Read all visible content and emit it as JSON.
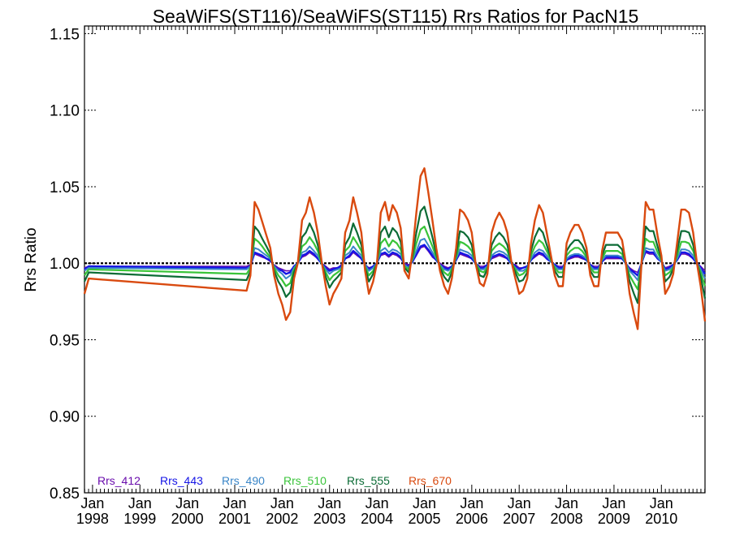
{
  "chart_data": {
    "type": "line",
    "title": "SeaWiFS(ST116)/SeaWiFS(ST115)  Rrs Ratios for PacN15",
    "xlabel": "",
    "ylabel": "Rrs Ratio",
    "ylim": [
      0.85,
      1.155
    ],
    "yticks": [
      {
        "value": 0.85,
        "label": "0.85"
      },
      {
        "value": 0.9,
        "label": "0.90"
      },
      {
        "value": 0.95,
        "label": "0.95"
      },
      {
        "value": 1.0,
        "label": "1.00"
      },
      {
        "value": 1.05,
        "label": "1.05"
      },
      {
        "value": 1.1,
        "label": "1.10"
      },
      {
        "value": 1.15,
        "label": "1.15"
      }
    ],
    "xlim": [
      1997.83,
      2010.92
    ],
    "xticks": [
      {
        "value": 1998,
        "month": "Jan",
        "year": "1998"
      },
      {
        "value": 1999,
        "month": "Jan",
        "year": "1999"
      },
      {
        "value": 2000,
        "month": "Jan",
        "year": "2000"
      },
      {
        "value": 2001,
        "month": "Jan",
        "year": "2001"
      },
      {
        "value": 2002,
        "month": "Jan",
        "year": "2002"
      },
      {
        "value": 2003,
        "month": "Jan",
        "year": "2003"
      },
      {
        "value": 2004,
        "month": "Jan",
        "year": "2004"
      },
      {
        "value": 2005,
        "month": "Jan",
        "year": "2005"
      },
      {
        "value": 2006,
        "month": "Jan",
        "year": "2006"
      },
      {
        "value": 2007,
        "month": "Jan",
        "year": "2007"
      },
      {
        "value": 2008,
        "month": "Jan",
        "year": "2008"
      },
      {
        "value": 2009,
        "month": "Jan",
        "year": "2009"
      },
      {
        "value": 2010,
        "month": "Jan",
        "year": "2010"
      }
    ],
    "reference_line": {
      "value": 1.0,
      "style": "dotted"
    },
    "grid": false,
    "legend_position": "bottom-left",
    "x": [
      1997.83,
      1997.92,
      2001.25,
      2001.33,
      2001.42,
      2001.5,
      2001.58,
      2001.67,
      2001.75,
      2001.83,
      2001.92,
      2002.0,
      2002.08,
      2002.17,
      2002.25,
      2002.33,
      2002.42,
      2002.5,
      2002.58,
      2002.67,
      2002.75,
      2002.83,
      2002.92,
      2003.0,
      2003.08,
      2003.17,
      2003.25,
      2003.33,
      2003.42,
      2003.5,
      2003.58,
      2003.67,
      2003.75,
      2003.83,
      2003.92,
      2004.0,
      2004.08,
      2004.17,
      2004.25,
      2004.33,
      2004.42,
      2004.5,
      2004.58,
      2004.67,
      2004.75,
      2004.83,
      2004.92,
      2005.0,
      2005.08,
      2005.17,
      2005.25,
      2005.33,
      2005.42,
      2005.5,
      2005.58,
      2005.67,
      2005.75,
      2005.83,
      2005.92,
      2006.0,
      2006.08,
      2006.17,
      2006.25,
      2006.33,
      2006.42,
      2006.5,
      2006.58,
      2006.67,
      2006.75,
      2006.83,
      2006.92,
      2007.0,
      2007.08,
      2007.17,
      2007.25,
      2007.33,
      2007.42,
      2007.5,
      2007.58,
      2007.67,
      2007.75,
      2007.83,
      2007.92,
      2008.0,
      2008.08,
      2008.17,
      2008.25,
      2008.33,
      2008.42,
      2008.5,
      2008.58,
      2008.67,
      2008.75,
      2008.83,
      2008.92,
      2009.0,
      2009.08,
      2009.17,
      2009.25,
      2009.33,
      2009.42,
      2009.5,
      2009.58,
      2009.67,
      2009.75,
      2009.83,
      2009.92,
      2010.0,
      2010.08,
      2010.17,
      2010.25,
      2010.33,
      2010.42,
      2010.5,
      2010.58,
      2010.67,
      2010.75,
      2010.83,
      2010.92
    ],
    "series": [
      {
        "name": "Rrs_412",
        "color": "#6a0dad",
        "width": 1.6,
        "values": [
          0.997,
          0.998,
          0.998,
          0.999,
          1.006,
          1.005,
          1.004,
          1.003,
          1.001,
          0.999,
          0.997,
          0.996,
          0.995,
          0.995,
          0.998,
          1.0,
          1.004,
          1.005,
          1.007,
          1.005,
          1.003,
          1.0,
          0.998,
          0.996,
          0.997,
          0.997,
          0.999,
          1.003,
          1.004,
          1.007,
          1.005,
          1.003,
          0.999,
          0.997,
          0.998,
          1.0,
          1.005,
          1.006,
          1.004,
          1.006,
          1.005,
          1.003,
          1.0,
          0.999,
          1.001,
          1.005,
          1.01,
          1.011,
          1.008,
          1.004,
          1.002,
          1.0,
          0.998,
          0.997,
          0.998,
          1.002,
          1.006,
          1.005,
          1.004,
          1.003,
          1.0,
          0.998,
          0.998,
          0.999,
          1.003,
          1.004,
          1.005,
          1.004,
          1.003,
          1.0,
          0.999,
          0.997,
          0.997,
          0.998,
          1.002,
          1.004,
          1.006,
          1.005,
          1.003,
          1.001,
          0.999,
          0.998,
          0.998,
          1.002,
          1.003,
          1.004,
          1.004,
          1.003,
          1.002,
          0.999,
          0.998,
          0.998,
          1.001,
          1.003,
          1.003,
          1.003,
          1.003,
          1.003,
          1.0,
          0.997,
          0.995,
          0.994,
          1.0,
          1.007,
          1.006,
          1.006,
          1.003,
          1.001,
          0.997,
          0.998,
          0.999,
          1.002,
          1.006,
          1.006,
          1.005,
          1.003,
          1.0,
          0.998,
          0.995
        ]
      },
      {
        "name": "Rrs_443",
        "color": "#1414e6",
        "width": 2.4,
        "values": [
          0.996,
          0.998,
          0.997,
          0.998,
          1.007,
          1.006,
          1.005,
          1.003,
          1.002,
          0.998,
          0.996,
          0.995,
          0.993,
          0.994,
          0.998,
          1.0,
          1.005,
          1.006,
          1.008,
          1.006,
          1.003,
          1.0,
          0.997,
          0.995,
          0.996,
          0.997,
          0.998,
          1.003,
          1.005,
          1.008,
          1.006,
          1.003,
          0.999,
          0.996,
          0.998,
          1.0,
          1.006,
          1.007,
          1.005,
          1.007,
          1.006,
          1.004,
          0.999,
          0.998,
          1.001,
          1.006,
          1.011,
          1.012,
          1.009,
          1.005,
          1.002,
          0.999,
          0.997,
          0.996,
          0.998,
          1.002,
          1.007,
          1.006,
          1.005,
          1.003,
          1.0,
          0.997,
          0.997,
          0.999,
          1.004,
          1.005,
          1.006,
          1.005,
          1.003,
          1.0,
          0.998,
          0.996,
          0.997,
          0.998,
          1.002,
          1.005,
          1.007,
          1.006,
          1.003,
          1.001,
          0.999,
          0.997,
          0.997,
          1.002,
          1.004,
          1.005,
          1.005,
          1.004,
          1.002,
          0.999,
          0.997,
          0.997,
          1.001,
          1.004,
          1.004,
          1.004,
          1.004,
          1.003,
          1.0,
          0.996,
          0.994,
          0.992,
          1.0,
          1.008,
          1.007,
          1.007,
          1.003,
          1.001,
          0.996,
          0.997,
          0.999,
          1.002,
          1.007,
          1.007,
          1.006,
          1.003,
          1.0,
          0.997,
          0.993
        ]
      },
      {
        "name": "Rrs_490",
        "color": "#3a86c8",
        "width": 2.0,
        "values": [
          0.995,
          0.997,
          0.996,
          0.998,
          1.01,
          1.009,
          1.007,
          1.005,
          1.003,
          0.998,
          0.995,
          0.993,
          0.99,
          0.992,
          0.997,
          1.0,
          1.007,
          1.008,
          1.011,
          1.008,
          1.005,
          1.0,
          0.996,
          0.993,
          0.995,
          0.996,
          0.997,
          1.005,
          1.007,
          1.011,
          1.008,
          1.005,
          0.999,
          0.995,
          0.997,
          1.0,
          1.008,
          1.01,
          1.007,
          1.009,
          1.008,
          1.006,
          0.999,
          0.997,
          1.002,
          1.008,
          1.015,
          1.016,
          1.012,
          1.007,
          1.003,
          0.999,
          0.996,
          0.995,
          0.997,
          1.003,
          1.009,
          1.008,
          1.007,
          1.005,
          1.0,
          0.996,
          0.996,
          0.998,
          1.005,
          1.007,
          1.008,
          1.007,
          1.005,
          1.0,
          0.997,
          0.995,
          0.995,
          0.997,
          1.003,
          1.007,
          1.009,
          1.008,
          1.005,
          1.001,
          0.998,
          0.996,
          0.996,
          1.003,
          1.005,
          1.006,
          1.006,
          1.005,
          1.003,
          0.998,
          0.996,
          0.996,
          1.002,
          1.005,
          1.005,
          1.005,
          1.005,
          1.004,
          1.0,
          0.995,
          0.992,
          0.989,
          1.0,
          1.01,
          1.009,
          1.009,
          1.004,
          1.001,
          0.995,
          0.996,
          0.998,
          1.003,
          1.009,
          1.009,
          1.008,
          1.005,
          1.0,
          0.996,
          0.99
        ]
      },
      {
        "name": "Rrs_510",
        "color": "#39c439",
        "width": 2.2,
        "values": [
          0.992,
          0.996,
          0.993,
          0.997,
          1.016,
          1.014,
          1.011,
          1.007,
          1.004,
          0.997,
          0.992,
          0.989,
          0.985,
          0.987,
          0.996,
          1.0,
          1.011,
          1.013,
          1.017,
          1.013,
          1.008,
          1.0,
          0.994,
          0.989,
          0.992,
          0.994,
          0.996,
          1.008,
          1.011,
          1.017,
          1.013,
          1.008,
          0.998,
          0.992,
          0.995,
          1.0,
          1.013,
          1.016,
          1.011,
          1.015,
          1.013,
          1.009,
          0.998,
          0.996,
          1.003,
          1.013,
          1.022,
          1.024,
          1.018,
          1.011,
          1.004,
          0.998,
          0.994,
          0.992,
          0.996,
          1.004,
          1.014,
          1.013,
          1.011,
          1.008,
          1.0,
          0.995,
          0.994,
          0.997,
          1.008,
          1.011,
          1.013,
          1.011,
          1.008,
          1.001,
          0.996,
          0.992,
          0.993,
          0.996,
          1.005,
          1.011,
          1.015,
          1.013,
          1.008,
          1.002,
          0.997,
          0.994,
          0.994,
          1.005,
          1.008,
          1.01,
          1.01,
          1.008,
          1.004,
          0.997,
          0.994,
          0.994,
          1.003,
          1.008,
          1.008,
          1.008,
          1.008,
          1.006,
          1.0,
          0.992,
          0.987,
          0.983,
          1.0,
          1.016,
          1.014,
          1.014,
          1.007,
          1.002,
          0.992,
          0.994,
          0.997,
          1.005,
          1.014,
          1.014,
          1.013,
          1.008,
          1.0,
          0.994,
          0.985
        ]
      },
      {
        "name": "Rrs_555",
        "color": "#0b6b35",
        "width": 2.2,
        "values": [
          0.988,
          0.994,
          0.989,
          0.995,
          1.024,
          1.021,
          1.016,
          1.011,
          1.006,
          0.995,
          0.988,
          0.984,
          0.978,
          0.981,
          0.994,
          1.0,
          1.017,
          1.02,
          1.026,
          1.02,
          1.012,
          1.001,
          0.991,
          0.984,
          0.988,
          0.991,
          0.994,
          1.012,
          1.017,
          1.026,
          1.02,
          1.012,
          0.997,
          0.988,
          0.993,
          1.0,
          1.02,
          1.024,
          1.017,
          1.023,
          1.02,
          1.014,
          0.997,
          0.994,
          1.005,
          1.02,
          1.034,
          1.037,
          1.028,
          1.017,
          1.006,
          0.997,
          0.991,
          0.988,
          0.994,
          1.006,
          1.021,
          1.02,
          1.017,
          1.012,
          1.0,
          0.992,
          0.991,
          0.996,
          1.012,
          1.017,
          1.02,
          1.017,
          1.012,
          1.001,
          0.994,
          0.988,
          0.989,
          0.994,
          1.008,
          1.017,
          1.023,
          1.02,
          1.012,
          1.003,
          0.995,
          0.991,
          0.991,
          1.008,
          1.012,
          1.015,
          1.015,
          1.012,
          1.006,
          0.995,
          0.991,
          0.991,
          1.005,
          1.012,
          1.012,
          1.012,
          1.012,
          1.009,
          1.0,
          0.988,
          0.98,
          0.974,
          1.0,
          1.024,
          1.021,
          1.021,
          1.011,
          1.003,
          0.988,
          0.991,
          0.996,
          1.008,
          1.021,
          1.021,
          1.02,
          1.012,
          1.0,
          0.991,
          0.977
        ]
      },
      {
        "name": "Rrs_670",
        "color": "#d94a0f",
        "width": 2.4,
        "values": [
          0.98,
          0.99,
          0.982,
          0.992,
          1.04,
          1.035,
          1.027,
          1.018,
          1.01,
          0.992,
          0.98,
          0.973,
          0.963,
          0.968,
          0.99,
          1.0,
          1.028,
          1.033,
          1.043,
          1.033,
          1.02,
          1.002,
          0.985,
          0.973,
          0.98,
          0.985,
          0.99,
          1.02,
          1.028,
          1.043,
          1.033,
          1.02,
          0.995,
          0.98,
          0.988,
          1.0,
          1.033,
          1.04,
          1.028,
          1.038,
          1.033,
          1.023,
          0.995,
          0.99,
          1.008,
          1.033,
          1.057,
          1.062,
          1.047,
          1.028,
          1.01,
          0.995,
          0.985,
          0.98,
          0.99,
          1.01,
          1.035,
          1.033,
          1.028,
          1.02,
          1.0,
          0.987,
          0.985,
          0.993,
          1.02,
          1.028,
          1.033,
          1.028,
          1.02,
          1.002,
          0.99,
          0.98,
          0.982,
          0.99,
          1.013,
          1.028,
          1.038,
          1.033,
          1.02,
          1.005,
          0.992,
          0.985,
          0.985,
          1.013,
          1.02,
          1.025,
          1.025,
          1.02,
          1.01,
          0.992,
          0.985,
          0.985,
          1.008,
          1.02,
          1.02,
          1.02,
          1.02,
          1.015,
          1.0,
          0.98,
          0.967,
          0.957,
          1.0,
          1.04,
          1.035,
          1.035,
          1.018,
          1.005,
          0.98,
          0.985,
          0.993,
          1.013,
          1.035,
          1.035,
          1.033,
          1.02,
          1.0,
          0.985,
          0.962
        ]
      }
    ]
  }
}
